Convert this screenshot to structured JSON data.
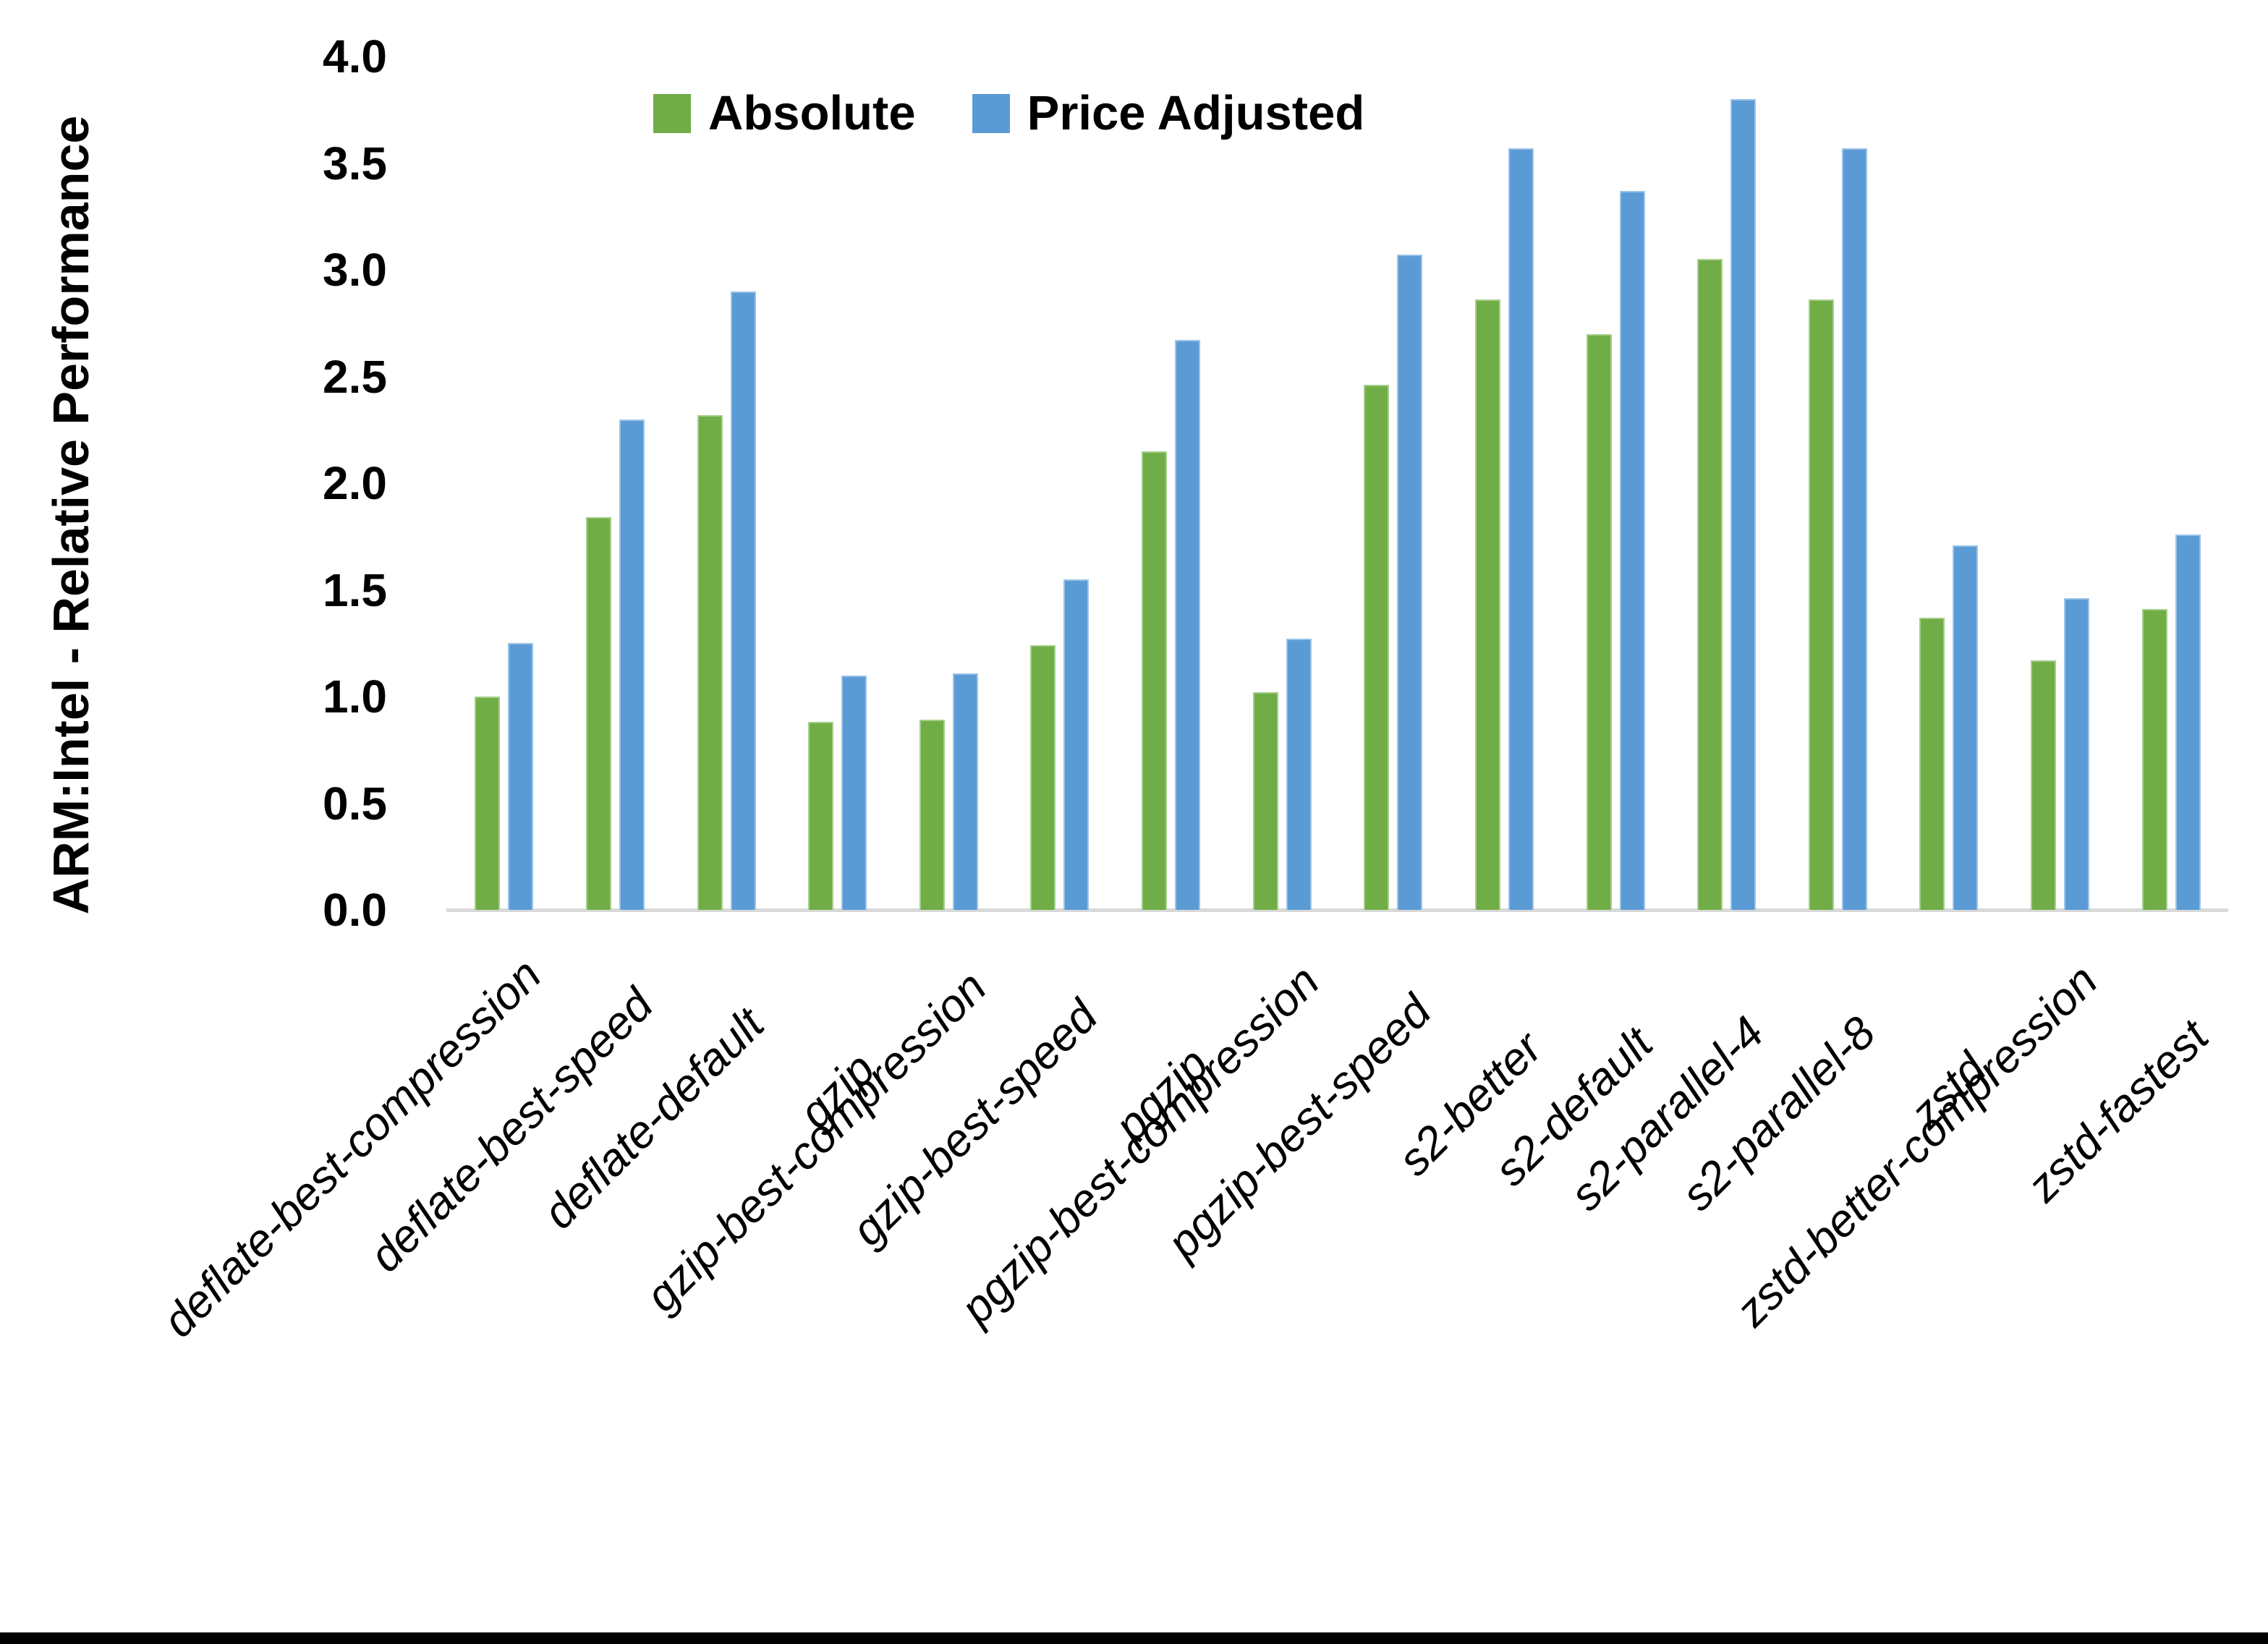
{
  "chart_data": {
    "type": "bar",
    "title": "",
    "ylabel": "ARM:Intel - Relative Performance",
    "xlabel": "",
    "ylim": [
      0.0,
      4.0
    ],
    "ytick_labels": [
      "0.0",
      "0.5",
      "1.0",
      "1.5",
      "2.0",
      "2.5",
      "3.0",
      "3.5",
      "4.0"
    ],
    "grid": false,
    "legend_position": "top-center",
    "categories": [
      "deflate-best-compression",
      "deflate-best-speed",
      "deflate-default",
      "gzip",
      "gzip-best-compression",
      "gzip-best-speed",
      "pgzip",
      "pgzip-best-compression",
      "pgzip-best-speed",
      "s2-better",
      "s2-default",
      "s2-parallel-4",
      "s2-parallel-8",
      "zstd",
      "zstd-better-compression",
      "zstd-fastest"
    ],
    "series": [
      {
        "name": "Absolute",
        "color": "#70AD47",
        "edge_color": "#A6CE8B",
        "values": [
          1.0,
          1.84,
          2.32,
          0.88,
          0.89,
          1.24,
          2.15,
          1.02,
          2.46,
          2.86,
          2.7,
          3.05,
          2.86,
          1.37,
          1.17,
          1.41
        ]
      },
      {
        "name": "Price Adjusted",
        "color": "#5B9BD5",
        "edge_color": "#9AC4E9",
        "values": [
          1.25,
          2.3,
          2.9,
          1.1,
          1.11,
          1.55,
          2.67,
          1.27,
          3.07,
          3.57,
          3.37,
          3.8,
          3.57,
          1.71,
          1.46,
          1.76
        ]
      }
    ],
    "axis_line_color": "#D9D9D9",
    "background_color": "#FFFFFF",
    "bottom_border_color": "#000000"
  }
}
